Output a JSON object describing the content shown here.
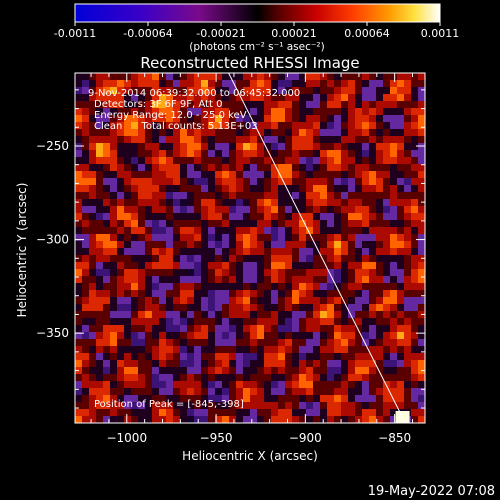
{
  "colorbar": {
    "ticks": [
      "-0.0011",
      "-0.00064",
      "-0.00021",
      "0.00021",
      "0.00064",
      "0.0011"
    ],
    "unit_label": "(photons cm⁻² s⁻¹ asec⁻²)"
  },
  "title": "Reconstructed RHESSI Image",
  "annotations": {
    "time_range": "9-Nov-2014 06:39:32.000 to 06:45:32.000",
    "detectors": "Detectors: 3F 6F 9F, Att 0",
    "energy": "Energy Range: 12.0 - 25.0 keV",
    "clean": "Clean      Total counts: 5.13E+03",
    "peak": "Position of Peak = [-845,-398]"
  },
  "footer_timestamp": "19-May-2022 07:08",
  "colors": {
    "background": "#000000",
    "limb_line": "#ffffff"
  },
  "chart_data": {
    "type": "heatmap",
    "title": "Reconstructed RHESSI Image",
    "xlabel": "Heliocentric X (arcsec)",
    "ylabel": "Heliocentric Y (arcsec)",
    "xlim": [
      -1029,
      -833
    ],
    "ylim": [
      -398,
      -211
    ],
    "x_ticks": [
      -1000,
      -950,
      -900,
      -850
    ],
    "y_ticks": [
      -250,
      -300,
      -350
    ],
    "x_tick_labels": [
      "−1000",
      "−950",
      "−900",
      "−850"
    ],
    "y_tick_labels": [
      "−250",
      "−300",
      "−350"
    ],
    "colorscale": "rhessi-blue-purple-red-orange-yellow-white",
    "clim": [
      -0.0011,
      0.0011
    ],
    "peak_position": [
      -845,
      -398
    ],
    "limb_line": [
      [
        -943,
        -211
      ],
      [
        -844,
        -398
      ]
    ],
    "grid": false
  }
}
